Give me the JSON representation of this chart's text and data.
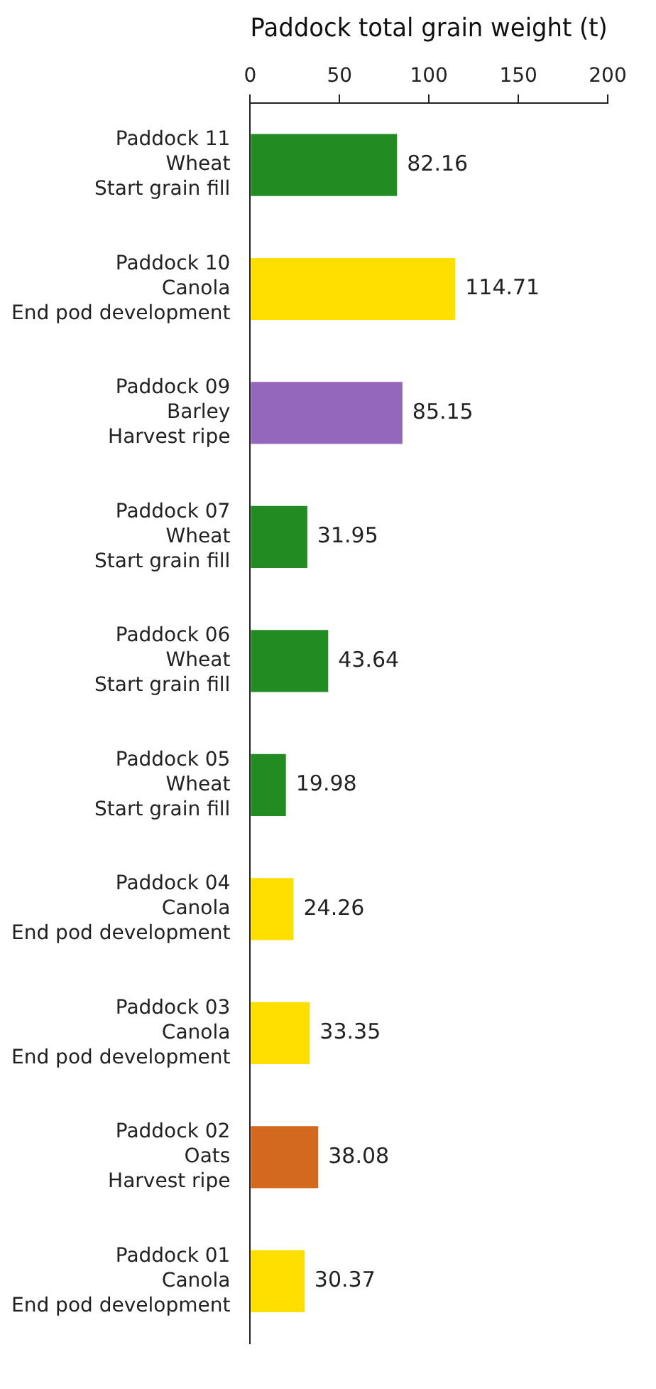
{
  "chart_data": {
    "type": "bar",
    "orientation": "horizontal",
    "xlabel": "Paddock total grain weight (t)",
    "categories": [
      "Paddock 11\nWheat\nStart grain fill",
      "Paddock 10\nCanola\nEnd pod development",
      "Paddock 09\nBarley\nHarvest ripe",
      "Paddock 07\nWheat\nStart grain fill",
      "Paddock 06\nWheat\nStart grain fill",
      "Paddock 05\nWheat\nStart grain fill",
      "Paddock 04\nCanola\nEnd pod development",
      "Paddock 03\nCanola\nEnd pod development",
      "Paddock 02\nOats\nHarvest ripe",
      "Paddock 01\nCanola\nEnd pod development"
    ],
    "values": [
      82.16,
      114.71,
      85.15,
      31.95,
      43.64,
      19.98,
      24.26,
      33.35,
      38.08,
      30.37
    ],
    "colors": [
      "#228b22",
      "#ffdf00",
      "#9467bd",
      "#228b22",
      "#228b22",
      "#228b22",
      "#ffdf00",
      "#ffdf00",
      "#d2691e",
      "#ffdf00"
    ],
    "xlim": [
      0,
      200
    ],
    "xticks": [
      0,
      50,
      100,
      150,
      200
    ],
    "data_labels": true,
    "grid": false,
    "legend": false
  }
}
